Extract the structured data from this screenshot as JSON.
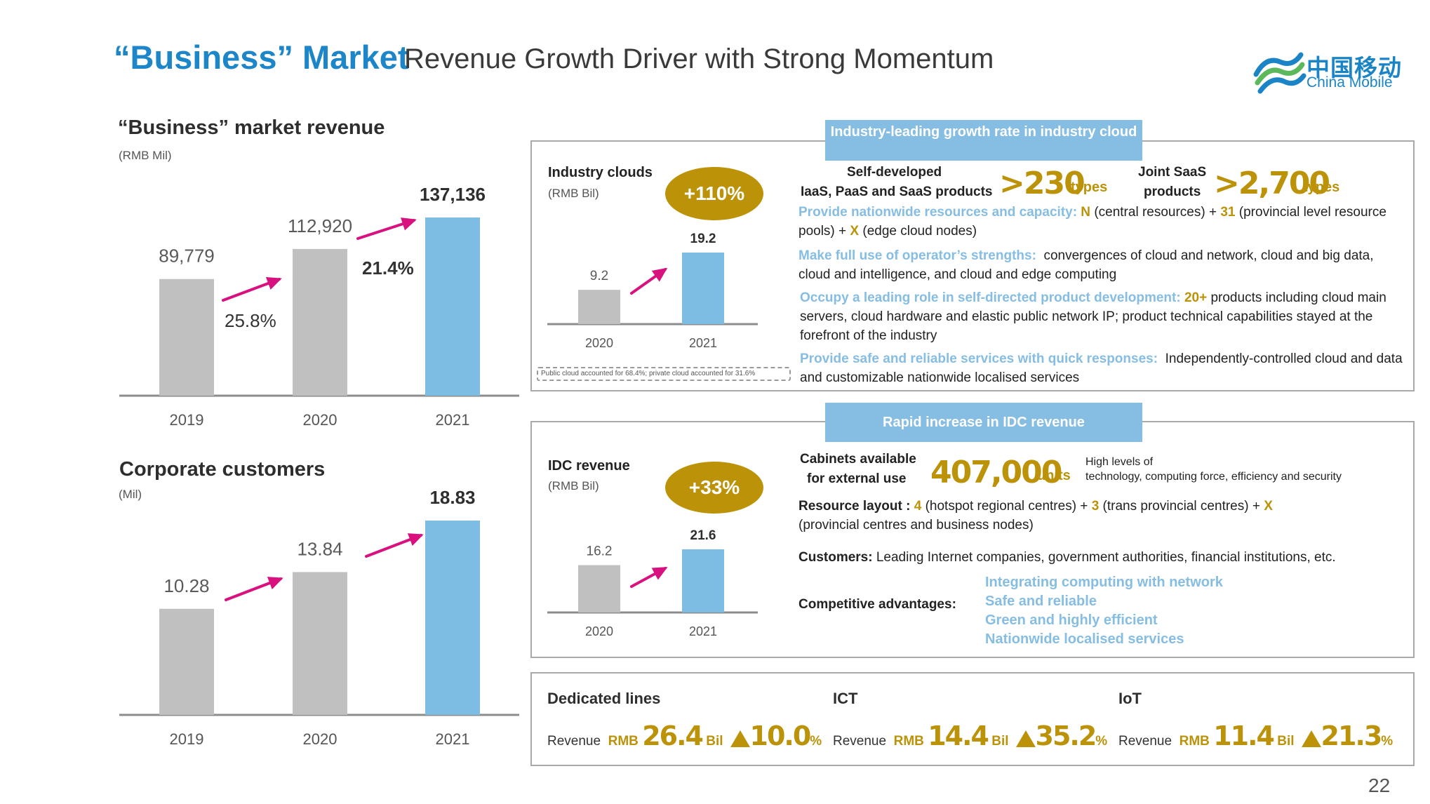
{
  "header": {
    "title_main": "“Business” Market",
    "title_sub": "Revenue Growth Driver with Strong Momentum",
    "logo_cn": "中国移动",
    "logo_en": "China Mobile"
  },
  "revenue_section": {
    "title": "“Business” market revenue",
    "unit": "(RMB Mil)"
  },
  "customers_section": {
    "title": "Corporate customers",
    "unit": "(Mil)"
  },
  "industry_cloud": {
    "banner": "Industry-leading growth rate in industry cloud",
    "chart_title": "Industry clouds",
    "unit": "(RMB Bil)",
    "growth": "+110%",
    "note": "Public cloud accounted for 68.4%; private cloud accounted for 31.6%",
    "self_dev_label_1": "Self-developed",
    "self_dev_label_2": "IaaS, PaaS and SaaS products",
    "self_dev_value": ">230",
    "self_dev_unit": "types",
    "joint_label_1": "Joint SaaS",
    "joint_label_2": "products",
    "joint_value": ">2,700",
    "joint_unit": "types",
    "b1_hl": "Provide nationwide resources and capacity:",
    "b1_n": "N",
    "b1_t1": "(central resources) +",
    "b1_31": "31",
    "b1_t2": "(provincial level resource pools) +",
    "b1_x": "X",
    "b1_t3": "(edge cloud nodes)",
    "b2_hl": "Make full use of operator’s strengths:",
    "b2_t": "convergences of cloud and network, cloud and big data, cloud and intelligence, and cloud and edge computing",
    "b3_hl": "Occupy a leading role in self-directed product development:",
    "b3_g": "20+",
    "b3_t": "products including cloud main servers, cloud hardware and elastic public network IP; product technical capabilities stayed at the forefront of the industry",
    "b4_hl": "Provide safe and reliable services with quick responses:",
    "b4_t": "Independently-controlled cloud and data and customizable nationwide localised services"
  },
  "idc": {
    "banner": "Rapid increase in IDC revenue",
    "chart_title": "IDC revenue",
    "unit": "(RMB Bil)",
    "growth": "+33%",
    "cab_label_1": "Cabinets available",
    "cab_label_2": "for external use",
    "cab_value": "407,000",
    "cab_unit": "units",
    "high_1": "High levels of",
    "high_2": "technology, computing force, efficiency and security",
    "res_label": "Resource layout :",
    "res_4": "4",
    "res_t1": "(hotspot regional centres) +",
    "res_3": "3",
    "res_t2": "(trans provincial centres) +",
    "res_x": "X",
    "res_t3": "(provincial centres and business nodes)",
    "cust_label": "Customers:",
    "cust_text": "Leading Internet companies, government authorities, financial institutions, etc.",
    "comp_label": "Competitive advantages:",
    "advantages": [
      "Integrating computing with network",
      "Safe and reliable",
      "Green and highly efficient",
      "Nationwide localised services"
    ]
  },
  "kpis": [
    {
      "title": "Dedicated lines",
      "rev": "Revenue",
      "rmb": "RMB",
      "value": "26.4",
      "bil": "Bil",
      "growth": "10.0",
      "pct": "%"
    },
    {
      "title": "ICT",
      "rev": "Revenue",
      "rmb": "RMB",
      "value": "14.4",
      "bil": "Bil",
      "growth": "35.2",
      "pct": "%"
    },
    {
      "title": "IoT",
      "rev": "Revenue",
      "rmb": "RMB",
      "value": "11.4",
      "bil": "Bil",
      "growth": "21.3",
      "pct": "%"
    }
  ],
  "page_number": "22",
  "colors": {
    "accent_blue": "#1c86c8",
    "bar_gray": "#c0c0c0",
    "bar_blue": "#7dbde3",
    "gold": "#bc9208",
    "arrow_pink": "#d9117e",
    "banner_blue": "#86bde3"
  },
  "chart_data": [
    {
      "id": "revenue",
      "type": "bar",
      "categories": [
        "2019",
        "2020",
        "2021"
      ],
      "values": [
        89779,
        112920,
        137136
      ],
      "labels": [
        "89,779",
        "112,920",
        "137,136"
      ],
      "growth_labels": [
        "25.8%",
        "21.4%"
      ],
      "ylim": [
        0,
        137136
      ]
    },
    {
      "id": "customers",
      "type": "bar",
      "categories": [
        "2019",
        "2020",
        "2021"
      ],
      "values": [
        10.28,
        13.84,
        18.83
      ],
      "labels": [
        "10.28",
        "13.84",
        "18.83"
      ],
      "ylim": [
        0,
        18.83
      ]
    },
    {
      "id": "industry_clouds",
      "type": "bar",
      "categories": [
        "2020",
        "2021"
      ],
      "values": [
        9.2,
        19.2
      ],
      "labels": [
        "9.2",
        "19.2"
      ],
      "ylim": [
        0,
        19.2
      ]
    },
    {
      "id": "idc_revenue",
      "type": "bar",
      "categories": [
        "2020",
        "2021"
      ],
      "values": [
        16.2,
        21.6
      ],
      "labels": [
        "16.2",
        "21.6"
      ],
      "ylim": [
        0,
        21.6
      ]
    }
  ]
}
